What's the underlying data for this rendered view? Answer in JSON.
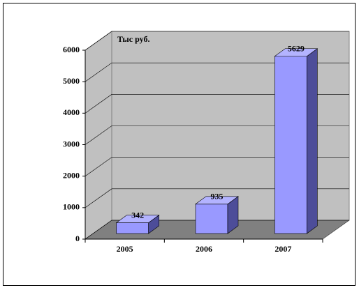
{
  "chart_data": {
    "type": "bar3d",
    "annotation": "Тыс руб.",
    "categories": [
      "2005",
      "2006",
      "2007"
    ],
    "values": [
      342,
      935,
      5629
    ],
    "color": "#9999ff",
    "ylim": [
      0,
      6000
    ],
    "yticks": [
      0,
      1000,
      2000,
      3000,
      4000,
      5000,
      6000
    ],
    "grid": true
  }
}
